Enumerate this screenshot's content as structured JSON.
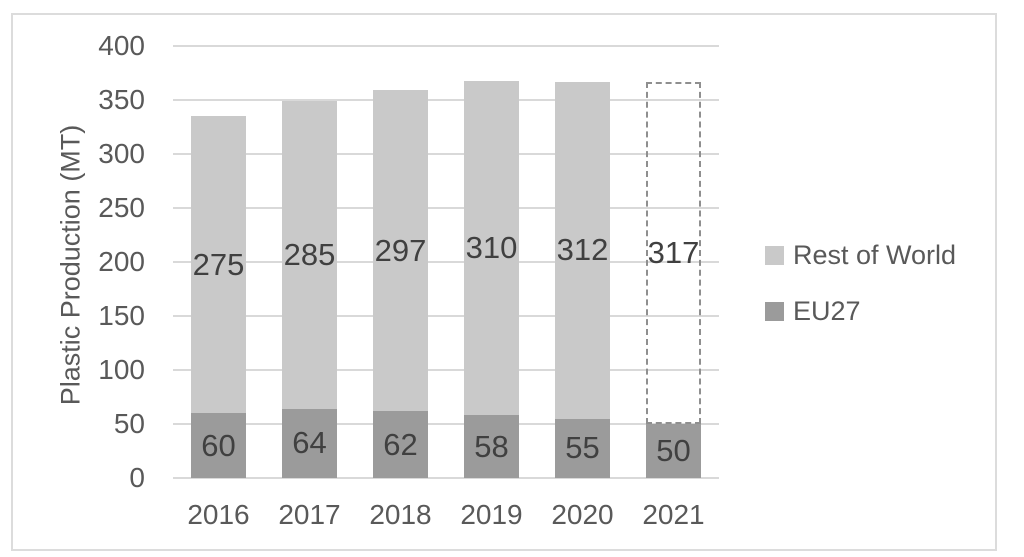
{
  "chart_data": {
    "type": "bar",
    "stacked": true,
    "title": "",
    "xlabel": "",
    "ylabel": "Plastic Production (MT)",
    "categories": [
      "2016",
      "2017",
      "2018",
      "2019",
      "2020",
      "2021"
    ],
    "series": [
      {
        "name": "EU27",
        "color": "#9b9b9b",
        "values": [
          60,
          64,
          62,
          58,
          55,
          50
        ]
      },
      {
        "name": "Rest of World",
        "color": "#c9c9c9",
        "values": [
          275,
          285,
          297,
          310,
          312,
          317
        ]
      }
    ],
    "data_labels_shown": true,
    "forecast": {
      "category": "2021",
      "series": "Rest of World",
      "style": "dashed_outline",
      "outline_color": "#8f8f8f"
    },
    "ylim": [
      0,
      400
    ],
    "yticks": [
      0,
      50,
      100,
      150,
      200,
      250,
      300,
      350,
      400
    ],
    "grid": true,
    "gridline_color": "#d9d9d9",
    "legend_position": "right",
    "legend": [
      {
        "label": "Rest of World",
        "color": "#c9c9c9"
      },
      {
        "label": "EU27",
        "color": "#9b9b9b"
      }
    ]
  }
}
